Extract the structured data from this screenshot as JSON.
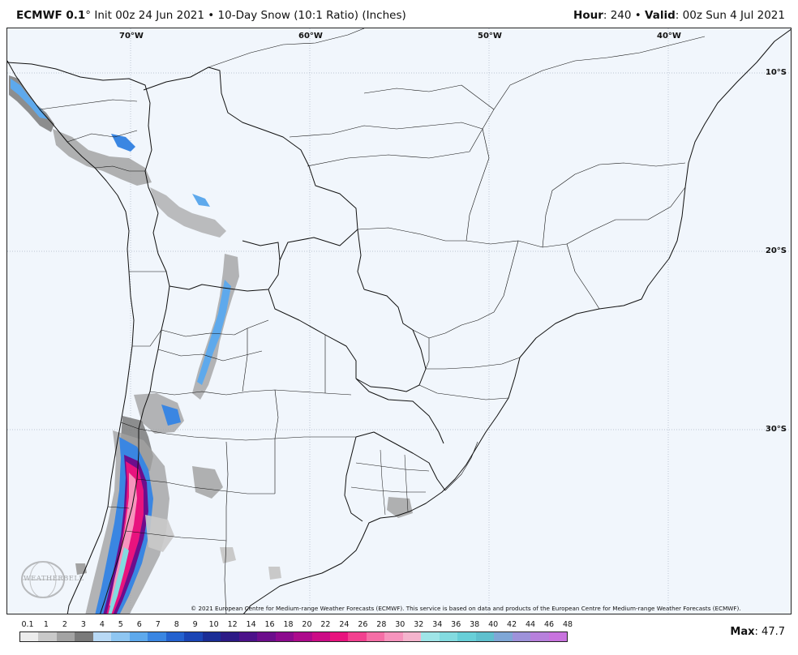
{
  "header": {
    "model": "ECMWF 0.1",
    "degree": "°",
    "init": "Init 00z 24 Jun 2021",
    "product": "10-Day Snow (10:1 Ratio) (Inches)",
    "hour_label": "Hour",
    "hour_value": "240",
    "valid_label": "Valid",
    "valid_value": "00z Sun 4 Jul 2021",
    "bullet": "•"
  },
  "map": {
    "longitude_labels": [
      "70°W",
      "60°W",
      "50°W",
      "40°W"
    ],
    "latitude_labels": [
      "10°S",
      "20°S",
      "30°S"
    ],
    "land_color": "#f1f6fc",
    "border_color": "#111111",
    "graticule_color": "#a9b4c4"
  },
  "copyright": "© 2021 European Centre for Medium-range Weather Forecasts (ECMWF). This service is based on data and products of the European Centre for Medium-range Weather Forecasts (ECMWF).",
  "logo": {
    "text": "WEATHERBELL",
    "icon": "weatherbell-globe-icon"
  },
  "colorbar": {
    "labels": [
      "0.1",
      "1",
      "2",
      "3",
      "4",
      "5",
      "6",
      "7",
      "8",
      "9",
      "10",
      "12",
      "14",
      "16",
      "18",
      "20",
      "22",
      "24",
      "26",
      "28",
      "30",
      "32",
      "34",
      "36",
      "38",
      "40",
      "42",
      "44",
      "46",
      "48"
    ],
    "colors": [
      "#ececec",
      "#c9c9c9",
      "#a3a3a3",
      "#7a7a7a",
      "#b8d9f5",
      "#8ec6f2",
      "#5ea9ec",
      "#3a86e2",
      "#2462cf",
      "#1a45b5",
      "#1a2d96",
      "#2c1a86",
      "#4c128a",
      "#6c0e8c",
      "#8c0a8e",
      "#ad0a8c",
      "#cc0c86",
      "#e8137e",
      "#f2408f",
      "#f56ea6",
      "#f694bd",
      "#f4b4cd",
      "#9fe5e8",
      "#83dbe0",
      "#68cfd8",
      "#5fc0ce",
      "#7fa7d6",
      "#9e92da",
      "#b780dc",
      "#c873de"
    ]
  },
  "max": {
    "label": "Max",
    "value": "47.7"
  }
}
